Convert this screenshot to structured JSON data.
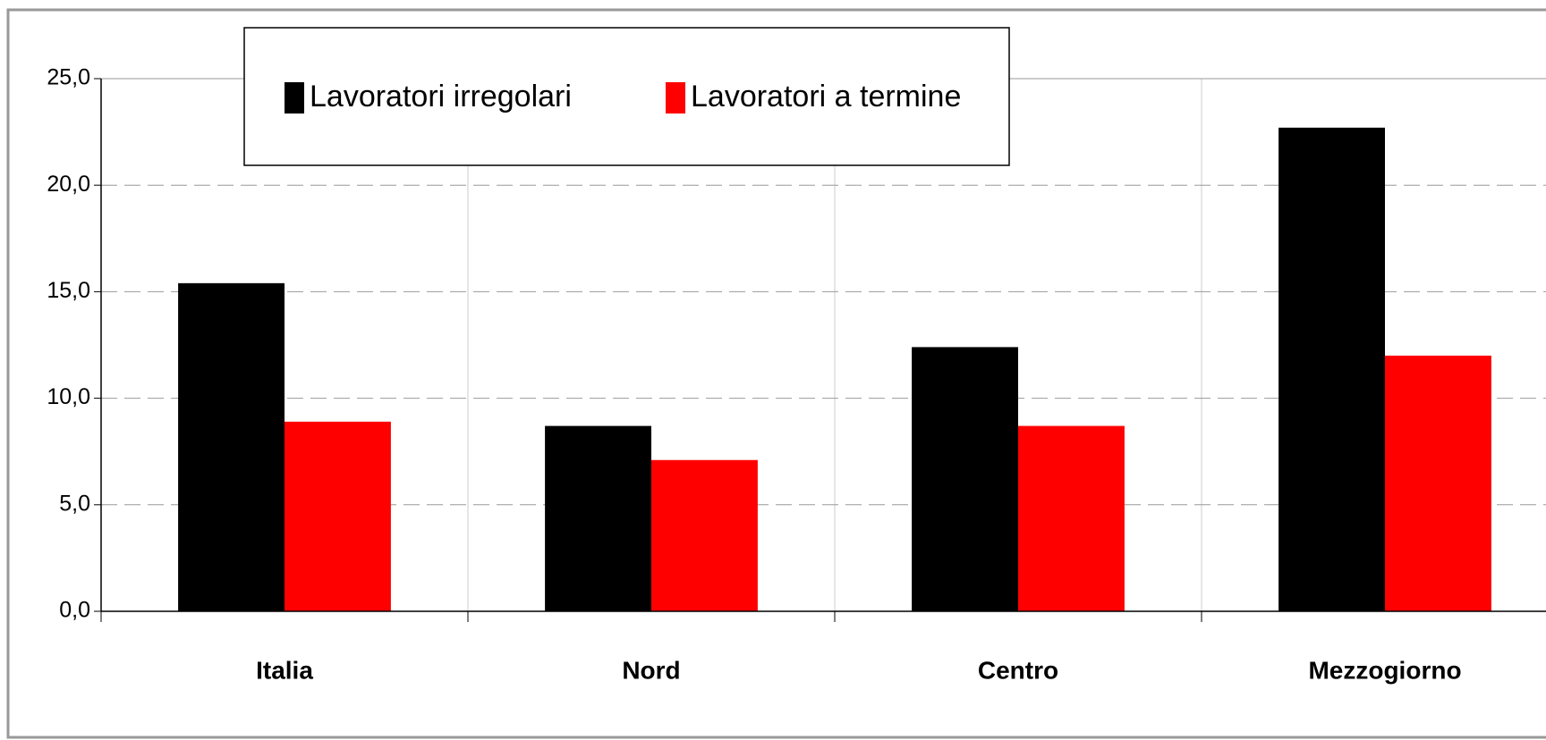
{
  "chart_data": {
    "type": "bar",
    "categories": [
      "Italia",
      "Nord",
      "Centro",
      "Mezzogiorno"
    ],
    "series": [
      {
        "name": "Lavoratori irregolari",
        "color": "#000000",
        "values": [
          15.4,
          8.7,
          12.4,
          22.7
        ]
      },
      {
        "name": "Lavoratori a termine",
        "color": "#ff0000",
        "values": [
          8.9,
          7.1,
          8.7,
          12.0
        ]
      }
    ],
    "ylim": [
      0,
      25
    ],
    "yticks": [
      {
        "value": 0,
        "label": "0,0"
      },
      {
        "value": 5,
        "label": "5,0"
      },
      {
        "value": 10,
        "label": "10,0"
      },
      {
        "value": 15,
        "label": "15,0"
      },
      {
        "value": 20,
        "label": "20,0"
      },
      {
        "value": 25,
        "label": "25,0"
      }
    ],
    "grid": true,
    "legend": "top"
  }
}
